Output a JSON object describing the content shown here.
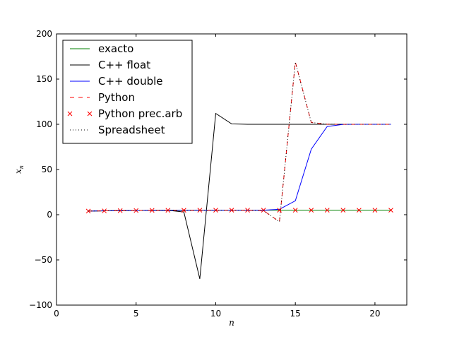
{
  "chart_data": {
    "type": "line",
    "title": "",
    "xlabel": "n",
    "ylabel": "x_n",
    "xlim": [
      0,
      22
    ],
    "ylim": [
      -100,
      200
    ],
    "xticks": [
      0,
      5,
      10,
      15,
      20
    ],
    "yticks": [
      -100,
      -50,
      0,
      50,
      100,
      150,
      200
    ],
    "legend_placement": "top-left",
    "grid": false,
    "series": [
      {
        "name": "exacto",
        "color": "#008000",
        "style": "solid",
        "x": [
          2,
          3,
          4,
          5,
          6,
          7,
          8,
          9,
          10,
          11,
          12,
          13,
          14,
          15,
          16,
          17,
          18,
          19,
          20,
          21
        ],
        "y": [
          4.0,
          4.25,
          4.47,
          4.64,
          4.77,
          4.86,
          4.91,
          4.95,
          4.97,
          4.98,
          4.99,
          4.995,
          4.997,
          4.998,
          4.999,
          4.9995,
          4.9997,
          4.9998,
          4.9999,
          4.99995
        ]
      },
      {
        "name": "C++ float",
        "color": "#000000",
        "style": "solid",
        "x": [
          2,
          3,
          4,
          5,
          6,
          7,
          8,
          9,
          10,
          11,
          12,
          13,
          14,
          15,
          16,
          17,
          18,
          19,
          20,
          21
        ],
        "y": [
          4.0,
          4.25,
          4.47,
          4.64,
          4.77,
          4.86,
          3.0,
          -71,
          112,
          100.5,
          100,
          100,
          100,
          100,
          100,
          100,
          100,
          100,
          100,
          100
        ]
      },
      {
        "name": "C++ double",
        "color": "#0000ff",
        "style": "solid",
        "x": [
          2,
          3,
          4,
          5,
          6,
          7,
          8,
          9,
          10,
          11,
          12,
          13,
          14,
          15,
          16,
          17,
          18,
          19,
          20,
          21
        ],
        "y": [
          4.0,
          4.25,
          4.47,
          4.64,
          4.77,
          4.86,
          4.91,
          4.95,
          4.97,
          4.98,
          4.99,
          5.0,
          6.0,
          15.4,
          72.5,
          97.6,
          99.9,
          100,
          100,
          100
        ]
      },
      {
        "name": "Python",
        "color": "#ff0000",
        "style": "dashed",
        "x": [
          2,
          3,
          4,
          5,
          6,
          7,
          8,
          9,
          10,
          11,
          12,
          13,
          14,
          15,
          16,
          17,
          18,
          19,
          20,
          21
        ],
        "y": [
          4.0,
          4.25,
          4.47,
          4.64,
          4.77,
          4.86,
          4.91,
          4.95,
          4.97,
          4.98,
          4.99,
          4.5,
          -7.8,
          168.9,
          102.0,
          100.1,
          100,
          100,
          100,
          100
        ]
      },
      {
        "name": "Python prec.arb",
        "color": "#ff0000",
        "style": "markers-x",
        "x": [
          2,
          3,
          4,
          5,
          6,
          7,
          8,
          9,
          10,
          11,
          12,
          13,
          14,
          15,
          16,
          17,
          18,
          19,
          20,
          21
        ],
        "y": [
          4.0,
          4.25,
          4.47,
          4.64,
          4.77,
          4.86,
          4.91,
          4.95,
          4.97,
          4.98,
          4.99,
          4.995,
          4.997,
          4.998,
          4.999,
          4.9995,
          4.9997,
          4.9998,
          4.9999,
          4.99995
        ]
      },
      {
        "name": "Spreadsheet",
        "color": "#000000",
        "style": "dotted",
        "x": [
          2,
          3,
          4,
          5,
          6,
          7,
          8,
          9,
          10,
          11,
          12,
          13,
          14,
          15,
          16,
          17,
          18,
          19,
          20,
          21
        ],
        "y": [
          4.0,
          4.25,
          4.47,
          4.64,
          4.77,
          4.86,
          4.91,
          4.95,
          4.97,
          4.98,
          4.99,
          4.5,
          -7.8,
          168.9,
          102.0,
          100.1,
          100,
          100,
          100,
          100
        ]
      }
    ]
  }
}
